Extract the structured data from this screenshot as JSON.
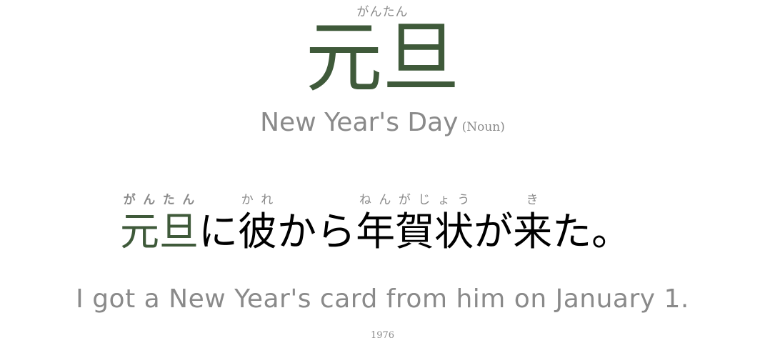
{
  "headword": {
    "reading": "がんたん",
    "kanji": "元旦"
  },
  "meaning": {
    "text": "New Year's Day",
    "part_of_speech": "(Noun)"
  },
  "sentence": {
    "segments": [
      {
        "text": "元旦",
        "reading": "がんたん",
        "target": true
      },
      {
        "text": "に"
      },
      {
        "text": "彼",
        "reading": "かれ"
      },
      {
        "text": "から"
      },
      {
        "text": "年賀状",
        "reading": "ねんがじょう"
      },
      {
        "text": "が"
      },
      {
        "text": "来",
        "reading": "き"
      },
      {
        "text": "た。"
      }
    ]
  },
  "translation": "I got a New Year's card from him on January 1.",
  "card_number": "1976",
  "colors": {
    "accent": "#3f5a3a",
    "muted": "#8a8a8a",
    "text": "#000000"
  }
}
